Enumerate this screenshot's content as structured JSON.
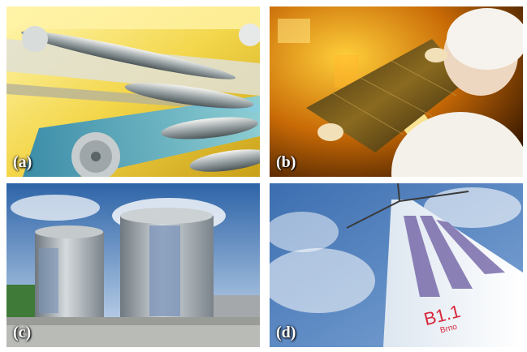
{
  "panels": [
    {
      "label": "(a)"
    },
    {
      "label": "(b)"
    },
    {
      "label": "(c)"
    },
    {
      "label": "(d)"
    }
  ],
  "turbine_text": {
    "code": "B1.1",
    "sub": "Brno"
  }
}
